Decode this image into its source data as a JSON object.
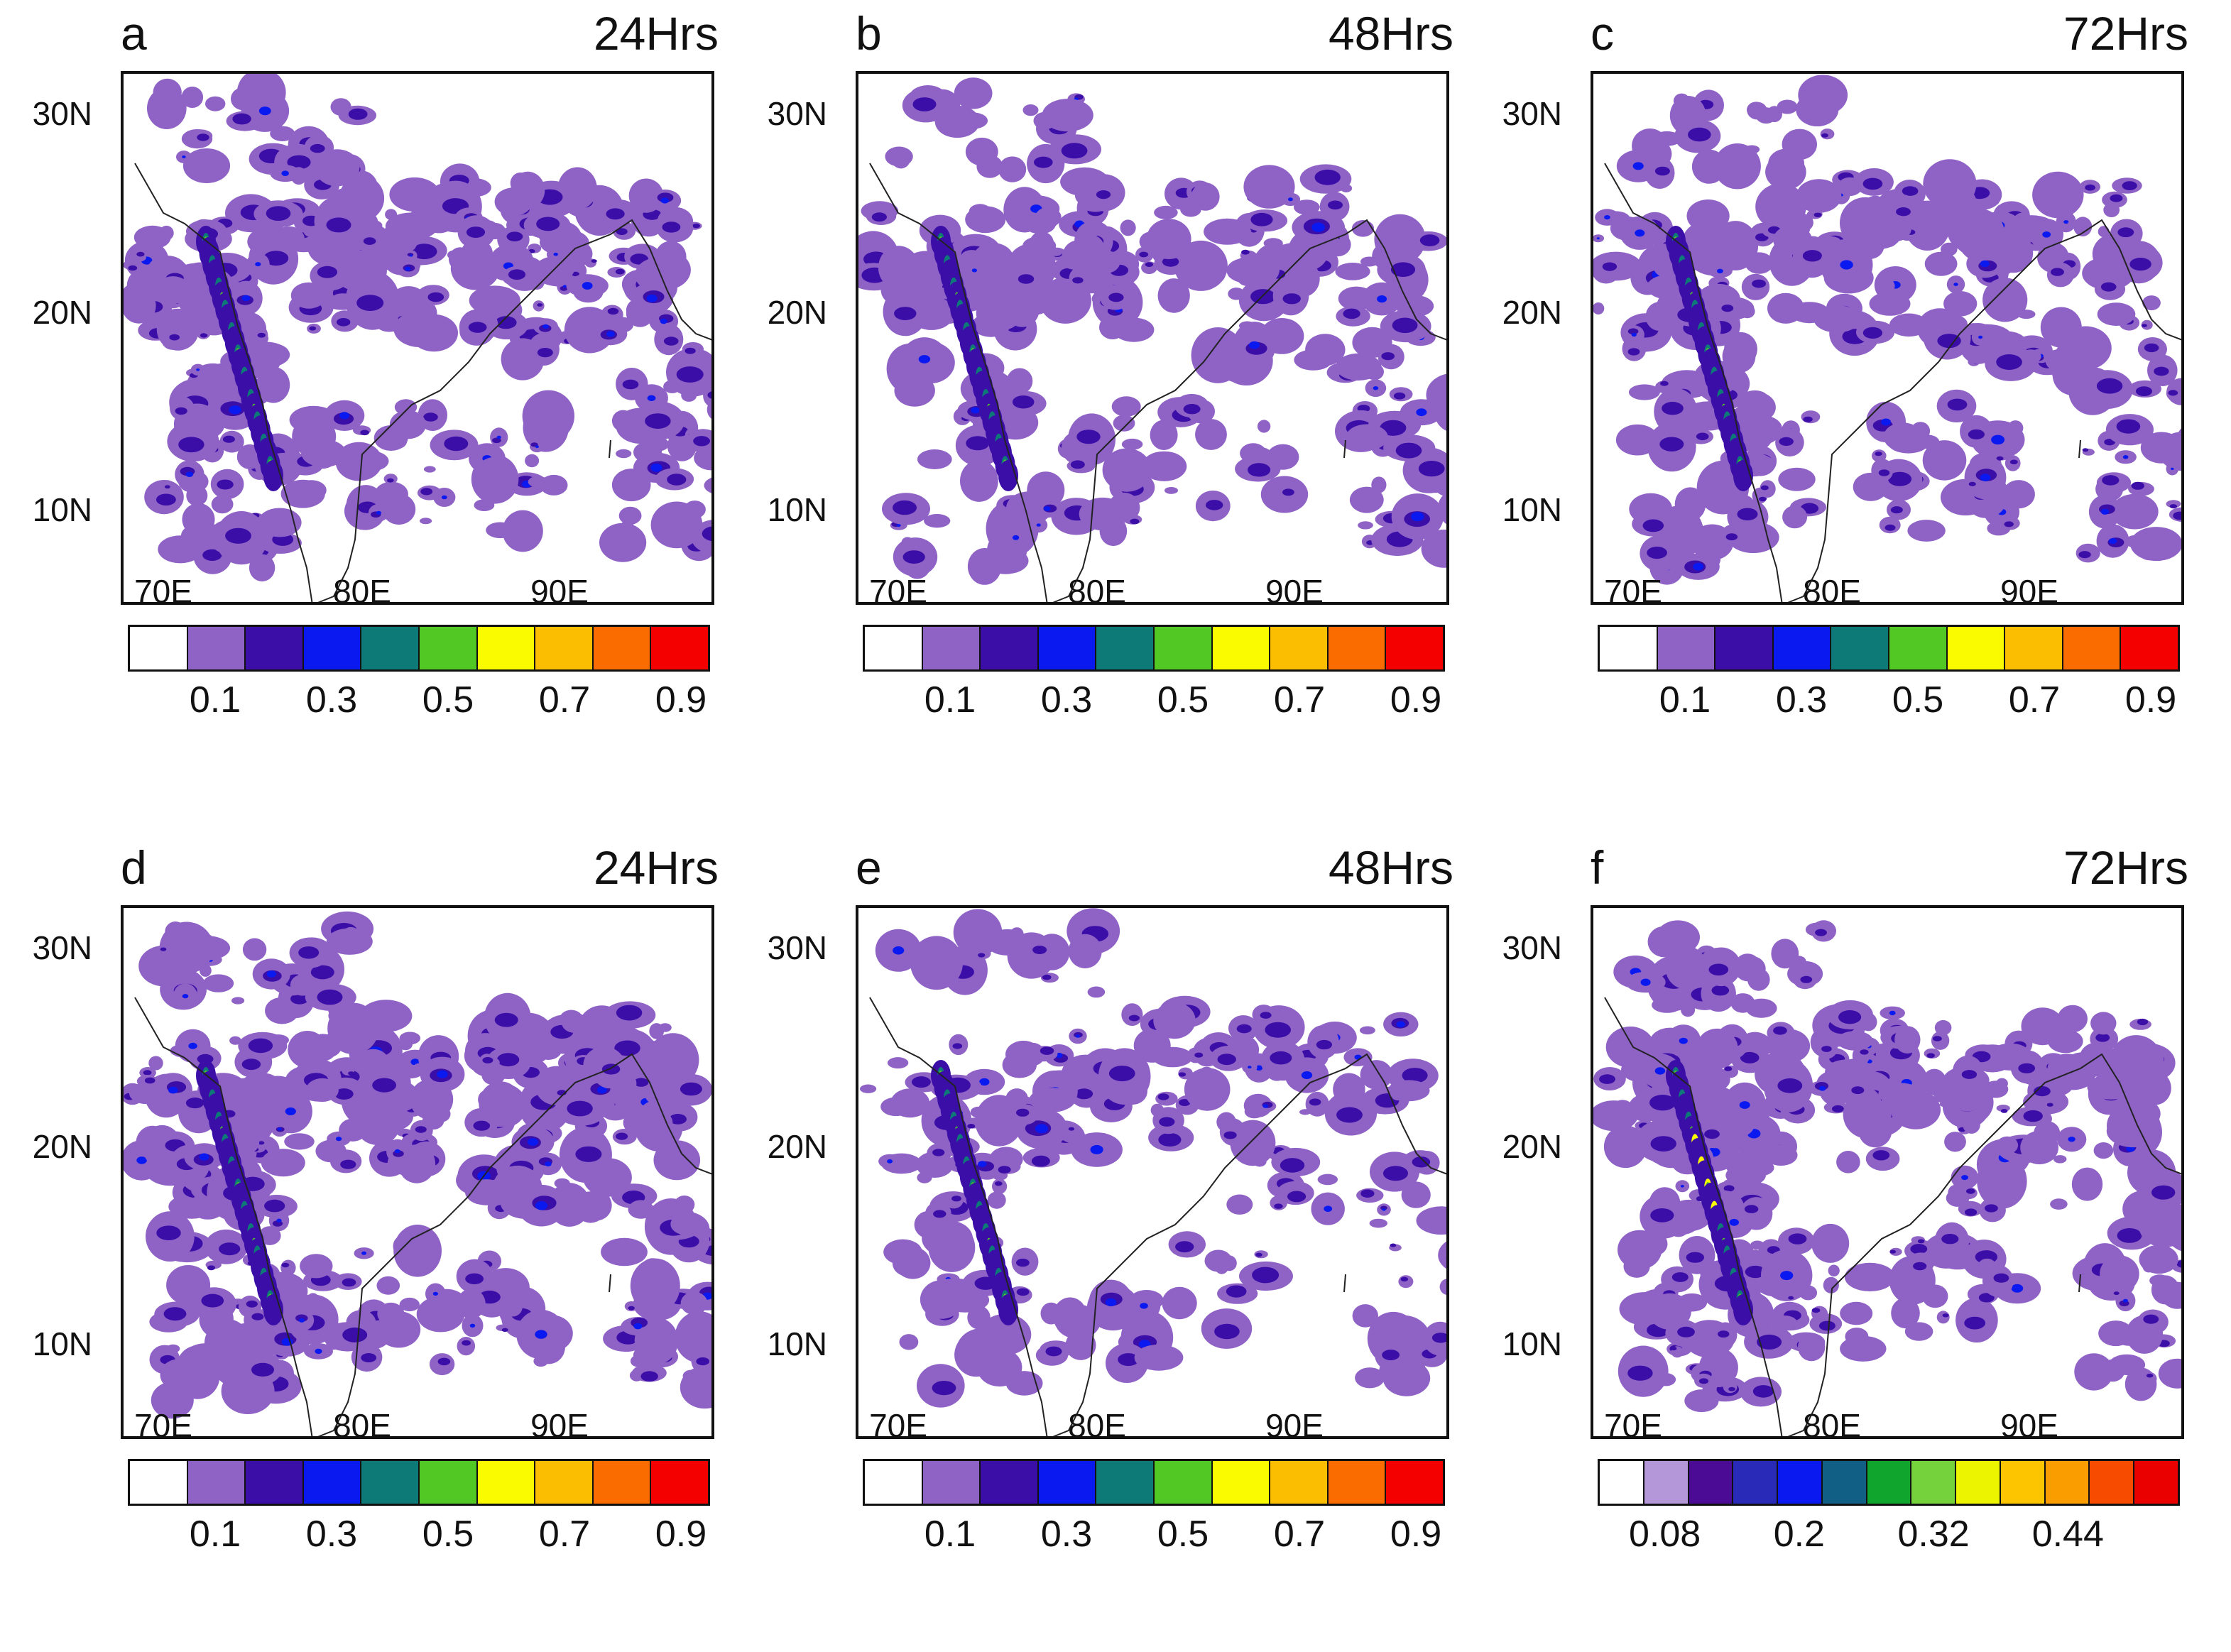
{
  "figure": {
    "panels": [
      {
        "id": "a",
        "time": "24Hrs"
      },
      {
        "id": "b",
        "time": "48Hrs"
      },
      {
        "id": "c",
        "time": "72Hrs"
      },
      {
        "id": "d",
        "time": "24Hrs"
      },
      {
        "id": "e",
        "time": "48Hrs"
      },
      {
        "id": "f",
        "time": "72Hrs"
      }
    ],
    "lat_labels": [
      "30N",
      "20N",
      "10N"
    ],
    "lon_labels": [
      "70E",
      "80E",
      "90E"
    ],
    "colorbar_standard": {
      "colors": [
        "#ffffff",
        "#8f62c6",
        "#3a0ea7",
        "#0a19f0",
        "#0e7a78",
        "#52c825",
        "#fbfb00",
        "#fbbe00",
        "#fb6c00",
        "#f50000"
      ],
      "labels": [
        "0.1",
        "0.3",
        "0.5",
        "0.7",
        "0.9"
      ]
    },
    "colorbar_f": {
      "colors": [
        "#ffffff",
        "#b497d9",
        "#4b0b94",
        "#2a2ab8",
        "#0a19f0",
        "#125f86",
        "#10a52c",
        "#76d23c",
        "#ecf400",
        "#fdc400",
        "#fa9d00",
        "#f74c00",
        "#eb0000"
      ],
      "labels": [
        "0.08",
        "0.2",
        "0.32",
        "0.44"
      ]
    }
  }
}
